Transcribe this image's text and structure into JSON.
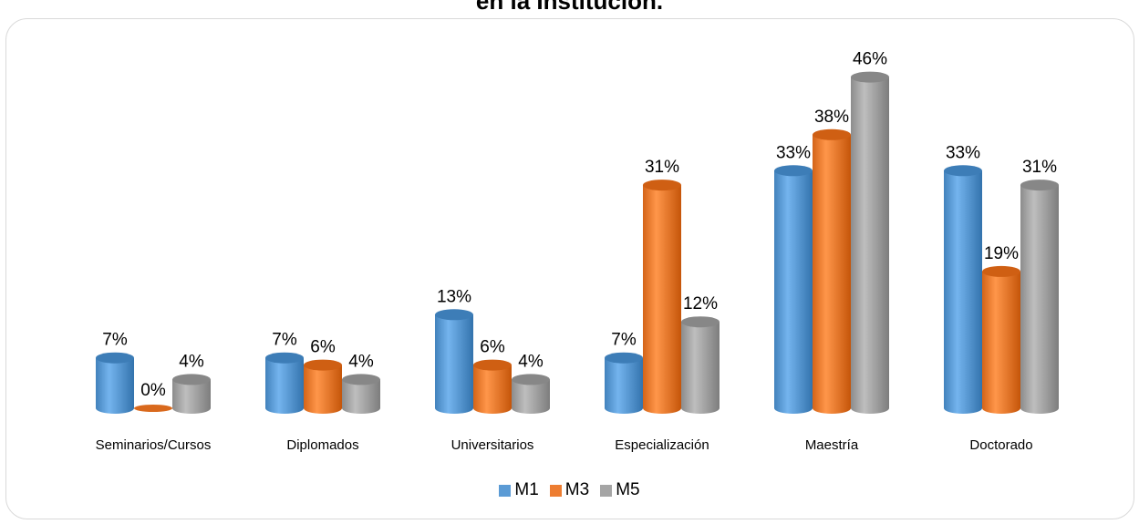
{
  "chart_data": {
    "type": "bar",
    "style": "3d-cylinder",
    "title": "en la Institución.",
    "categories": [
      "Seminarios/Cursos",
      "Diplomados",
      "Universitarios",
      "Especialización",
      "Maestría",
      "Doctorado"
    ],
    "series": [
      {
        "name": "M1",
        "color": "#5b9bd5",
        "values": [
          7,
          7,
          13,
          7,
          33,
          33
        ],
        "labels": [
          "7%",
          "7%",
          "13%",
          "7%",
          "33%",
          "33%"
        ]
      },
      {
        "name": "M3",
        "color": "#ed7d31",
        "values": [
          0,
          6,
          6,
          31,
          38,
          19
        ],
        "labels": [
          "0%",
          "6%",
          "6%",
          "31%",
          "38%",
          "19%"
        ]
      },
      {
        "name": "M5",
        "color": "#a5a5a5",
        "values": [
          4,
          4,
          4,
          12,
          46,
          31
        ],
        "labels": [
          "4%",
          "4%",
          "4%",
          "12%",
          "46%",
          "31%"
        ]
      }
    ],
    "ylabel": "",
    "xlabel": "",
    "ylim": [
      0,
      46
    ],
    "grid": false,
    "legend": "bottom"
  }
}
